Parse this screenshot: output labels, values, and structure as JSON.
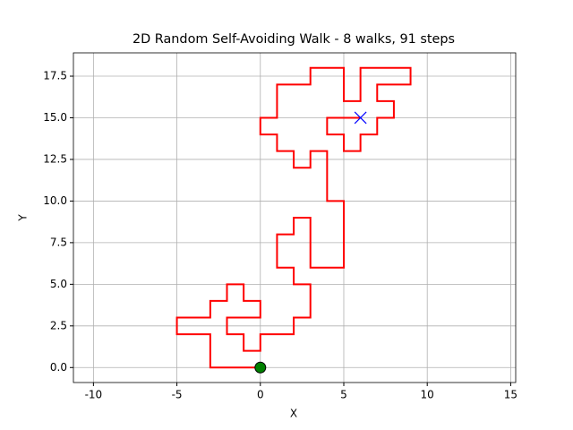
{
  "chart_data": {
    "type": "line",
    "title": "2D Random Self-Avoiding Walk - 8 walks, 91 steps",
    "x_label": "X",
    "y_label": "Y",
    "series": [
      {
        "color": "#ff0000",
        "x": [
          0,
          -3,
          -3,
          -5,
          -5,
          -3,
          -3,
          -2,
          -2,
          -1,
          -1,
          0,
          0,
          -2,
          -2,
          -1,
          -1,
          0,
          0,
          2,
          2,
          3,
          3,
          2,
          2,
          1,
          1,
          2,
          2,
          3,
          3,
          5,
          5,
          4,
          4,
          3,
          3,
          2,
          2,
          1,
          1,
          0,
          0,
          1,
          1,
          3,
          3,
          5,
          5,
          6,
          6,
          9,
          9,
          7,
          7,
          8,
          8,
          7,
          7,
          6,
          6,
          5,
          5,
          4,
          4,
          6
        ],
        "values": [
          0,
          0,
          2,
          2,
          3,
          3,
          4,
          4,
          5,
          5,
          4,
          4,
          3,
          3,
          2,
          2,
          1,
          1,
          2,
          2,
          3,
          3,
          5,
          5,
          6,
          6,
          8,
          8,
          9,
          9,
          6,
          6,
          10,
          10,
          13,
          13,
          12,
          12,
          13,
          13,
          14,
          14,
          15,
          15,
          17,
          17,
          18,
          18,
          16,
          16,
          18,
          18,
          17,
          17,
          16,
          16,
          15,
          15,
          14,
          14,
          13,
          13,
          14,
          14,
          15,
          15
        ]
      }
    ],
    "start_color": "#008000",
    "end_color": "#0000ff",
    "xlim": [
      -11.2,
      15.3
    ],
    "ylim": [
      -0.9,
      18.9
    ],
    "xticks": [
      -10,
      -5,
      0,
      5,
      10,
      15
    ],
    "yticks": [
      {
        "value": 0,
        "label": "0.0"
      },
      {
        "value": 2.5,
        "label": "2.5"
      },
      {
        "value": 5,
        "label": "5.0"
      },
      {
        "value": 7.5,
        "label": "7.5"
      },
      {
        "value": 10,
        "label": "10.0"
      },
      {
        "value": 12.5,
        "label": "12.5"
      },
      {
        "value": 15,
        "label": "15.0"
      },
      {
        "value": 17.5,
        "label": "17.5"
      }
    ],
    "grid": true
  }
}
